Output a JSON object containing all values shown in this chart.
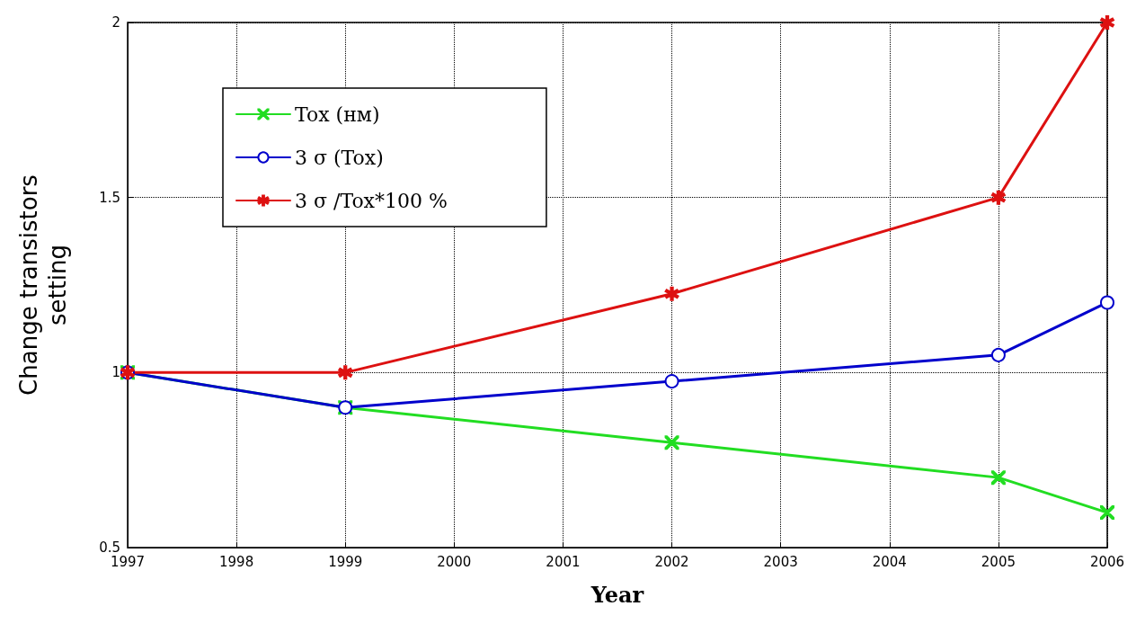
{
  "chart_data": {
    "type": "line",
    "xlabel": "Year",
    "ylabel": "Change transistors setting",
    "x": [
      1997,
      1999,
      2002,
      2005,
      2006
    ],
    "series": [
      {
        "name": "Tox (нм)",
        "color": "#22dd22",
        "marker": "cross",
        "values": [
          1.0,
          0.9,
          0.8,
          0.7,
          0.6
        ]
      },
      {
        "name": "3 σ (Tox)",
        "color": "#0000cc",
        "marker": "circle",
        "values": [
          1.0,
          0.9,
          0.975,
          1.05,
          1.2
        ]
      },
      {
        "name": "3 σ /Tox*100 %",
        "color": "#dd1111",
        "marker": "star",
        "values": [
          1.0,
          1.0,
          1.225,
          1.5,
          2.0
        ]
      }
    ],
    "xlim": [
      1997,
      2006
    ],
    "xticks": [
      1997,
      1998,
      1999,
      2000,
      2001,
      2002,
      2003,
      2004,
      2005,
      2006
    ],
    "ylim": [
      0.5,
      2
    ],
    "yticks": [
      0.5,
      1,
      1.5,
      2
    ],
    "grid": true,
    "legend": "top left",
    "line_style": "solid"
  }
}
